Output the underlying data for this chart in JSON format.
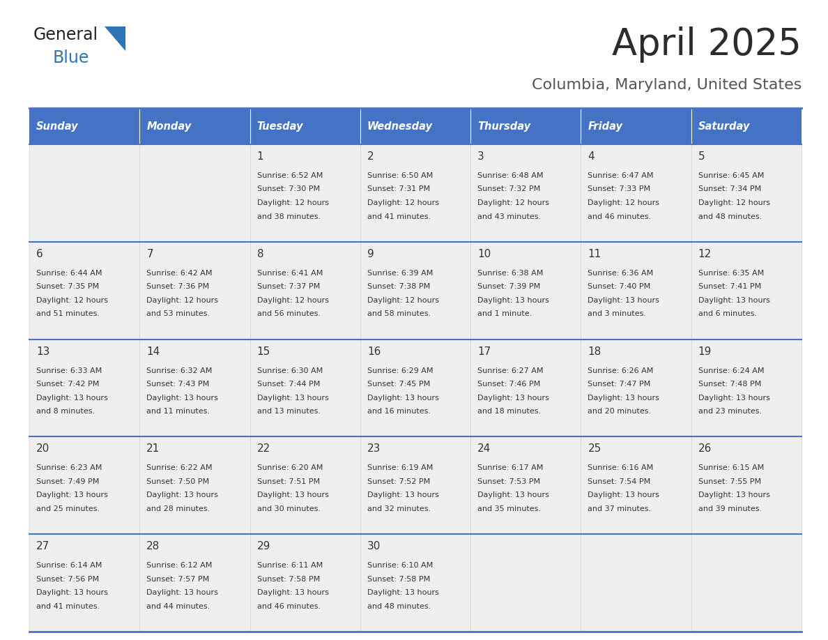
{
  "title": "April 2025",
  "subtitle": "Columbia, Maryland, United States",
  "days_of_week": [
    "Sunday",
    "Monday",
    "Tuesday",
    "Wednesday",
    "Thursday",
    "Friday",
    "Saturday"
  ],
  "header_bg": "#4472C4",
  "header_text": "#FFFFFF",
  "cell_bg_light": "#EFEFEF",
  "border_color": "#4472C4",
  "day_num_color": "#333333",
  "text_color": "#333333",
  "title_color": "#2C2C2C",
  "subtitle_color": "#555555",
  "logo_general_color": "#222222",
  "logo_blue_color": "#2E75B6",
  "weeks": [
    [
      {
        "day": null,
        "sunrise": null,
        "sunset": null,
        "daylight": null
      },
      {
        "day": null,
        "sunrise": null,
        "sunset": null,
        "daylight": null
      },
      {
        "day": 1,
        "sunrise": "6:52 AM",
        "sunset": "7:30 PM",
        "daylight": "12 hours and 38 minutes."
      },
      {
        "day": 2,
        "sunrise": "6:50 AM",
        "sunset": "7:31 PM",
        "daylight": "12 hours and 41 minutes."
      },
      {
        "day": 3,
        "sunrise": "6:48 AM",
        "sunset": "7:32 PM",
        "daylight": "12 hours and 43 minutes."
      },
      {
        "day": 4,
        "sunrise": "6:47 AM",
        "sunset": "7:33 PM",
        "daylight": "12 hours and 46 minutes."
      },
      {
        "day": 5,
        "sunrise": "6:45 AM",
        "sunset": "7:34 PM",
        "daylight": "12 hours and 48 minutes."
      }
    ],
    [
      {
        "day": 6,
        "sunrise": "6:44 AM",
        "sunset": "7:35 PM",
        "daylight": "12 hours and 51 minutes."
      },
      {
        "day": 7,
        "sunrise": "6:42 AM",
        "sunset": "7:36 PM",
        "daylight": "12 hours and 53 minutes."
      },
      {
        "day": 8,
        "sunrise": "6:41 AM",
        "sunset": "7:37 PM",
        "daylight": "12 hours and 56 minutes."
      },
      {
        "day": 9,
        "sunrise": "6:39 AM",
        "sunset": "7:38 PM",
        "daylight": "12 hours and 58 minutes."
      },
      {
        "day": 10,
        "sunrise": "6:38 AM",
        "sunset": "7:39 PM",
        "daylight": "13 hours and 1 minute."
      },
      {
        "day": 11,
        "sunrise": "6:36 AM",
        "sunset": "7:40 PM",
        "daylight": "13 hours and 3 minutes."
      },
      {
        "day": 12,
        "sunrise": "6:35 AM",
        "sunset": "7:41 PM",
        "daylight": "13 hours and 6 minutes."
      }
    ],
    [
      {
        "day": 13,
        "sunrise": "6:33 AM",
        "sunset": "7:42 PM",
        "daylight": "13 hours and 8 minutes."
      },
      {
        "day": 14,
        "sunrise": "6:32 AM",
        "sunset": "7:43 PM",
        "daylight": "13 hours and 11 minutes."
      },
      {
        "day": 15,
        "sunrise": "6:30 AM",
        "sunset": "7:44 PM",
        "daylight": "13 hours and 13 minutes."
      },
      {
        "day": 16,
        "sunrise": "6:29 AM",
        "sunset": "7:45 PM",
        "daylight": "13 hours and 16 minutes."
      },
      {
        "day": 17,
        "sunrise": "6:27 AM",
        "sunset": "7:46 PM",
        "daylight": "13 hours and 18 minutes."
      },
      {
        "day": 18,
        "sunrise": "6:26 AM",
        "sunset": "7:47 PM",
        "daylight": "13 hours and 20 minutes."
      },
      {
        "day": 19,
        "sunrise": "6:24 AM",
        "sunset": "7:48 PM",
        "daylight": "13 hours and 23 minutes."
      }
    ],
    [
      {
        "day": 20,
        "sunrise": "6:23 AM",
        "sunset": "7:49 PM",
        "daylight": "13 hours and 25 minutes."
      },
      {
        "day": 21,
        "sunrise": "6:22 AM",
        "sunset": "7:50 PM",
        "daylight": "13 hours and 28 minutes."
      },
      {
        "day": 22,
        "sunrise": "6:20 AM",
        "sunset": "7:51 PM",
        "daylight": "13 hours and 30 minutes."
      },
      {
        "day": 23,
        "sunrise": "6:19 AM",
        "sunset": "7:52 PM",
        "daylight": "13 hours and 32 minutes."
      },
      {
        "day": 24,
        "sunrise": "6:17 AM",
        "sunset": "7:53 PM",
        "daylight": "13 hours and 35 minutes."
      },
      {
        "day": 25,
        "sunrise": "6:16 AM",
        "sunset": "7:54 PM",
        "daylight": "13 hours and 37 minutes."
      },
      {
        "day": 26,
        "sunrise": "6:15 AM",
        "sunset": "7:55 PM",
        "daylight": "13 hours and 39 minutes."
      }
    ],
    [
      {
        "day": 27,
        "sunrise": "6:14 AM",
        "sunset": "7:56 PM",
        "daylight": "13 hours and 41 minutes."
      },
      {
        "day": 28,
        "sunrise": "6:12 AM",
        "sunset": "7:57 PM",
        "daylight": "13 hours and 44 minutes."
      },
      {
        "day": 29,
        "sunrise": "6:11 AM",
        "sunset": "7:58 PM",
        "daylight": "13 hours and 46 minutes."
      },
      {
        "day": 30,
        "sunrise": "6:10 AM",
        "sunset": "7:58 PM",
        "daylight": "13 hours and 48 minutes."
      },
      {
        "day": null,
        "sunrise": null,
        "sunset": null,
        "daylight": null
      },
      {
        "day": null,
        "sunrise": null,
        "sunset": null,
        "daylight": null
      },
      {
        "day": null,
        "sunrise": null,
        "sunset": null,
        "daylight": null
      }
    ]
  ]
}
